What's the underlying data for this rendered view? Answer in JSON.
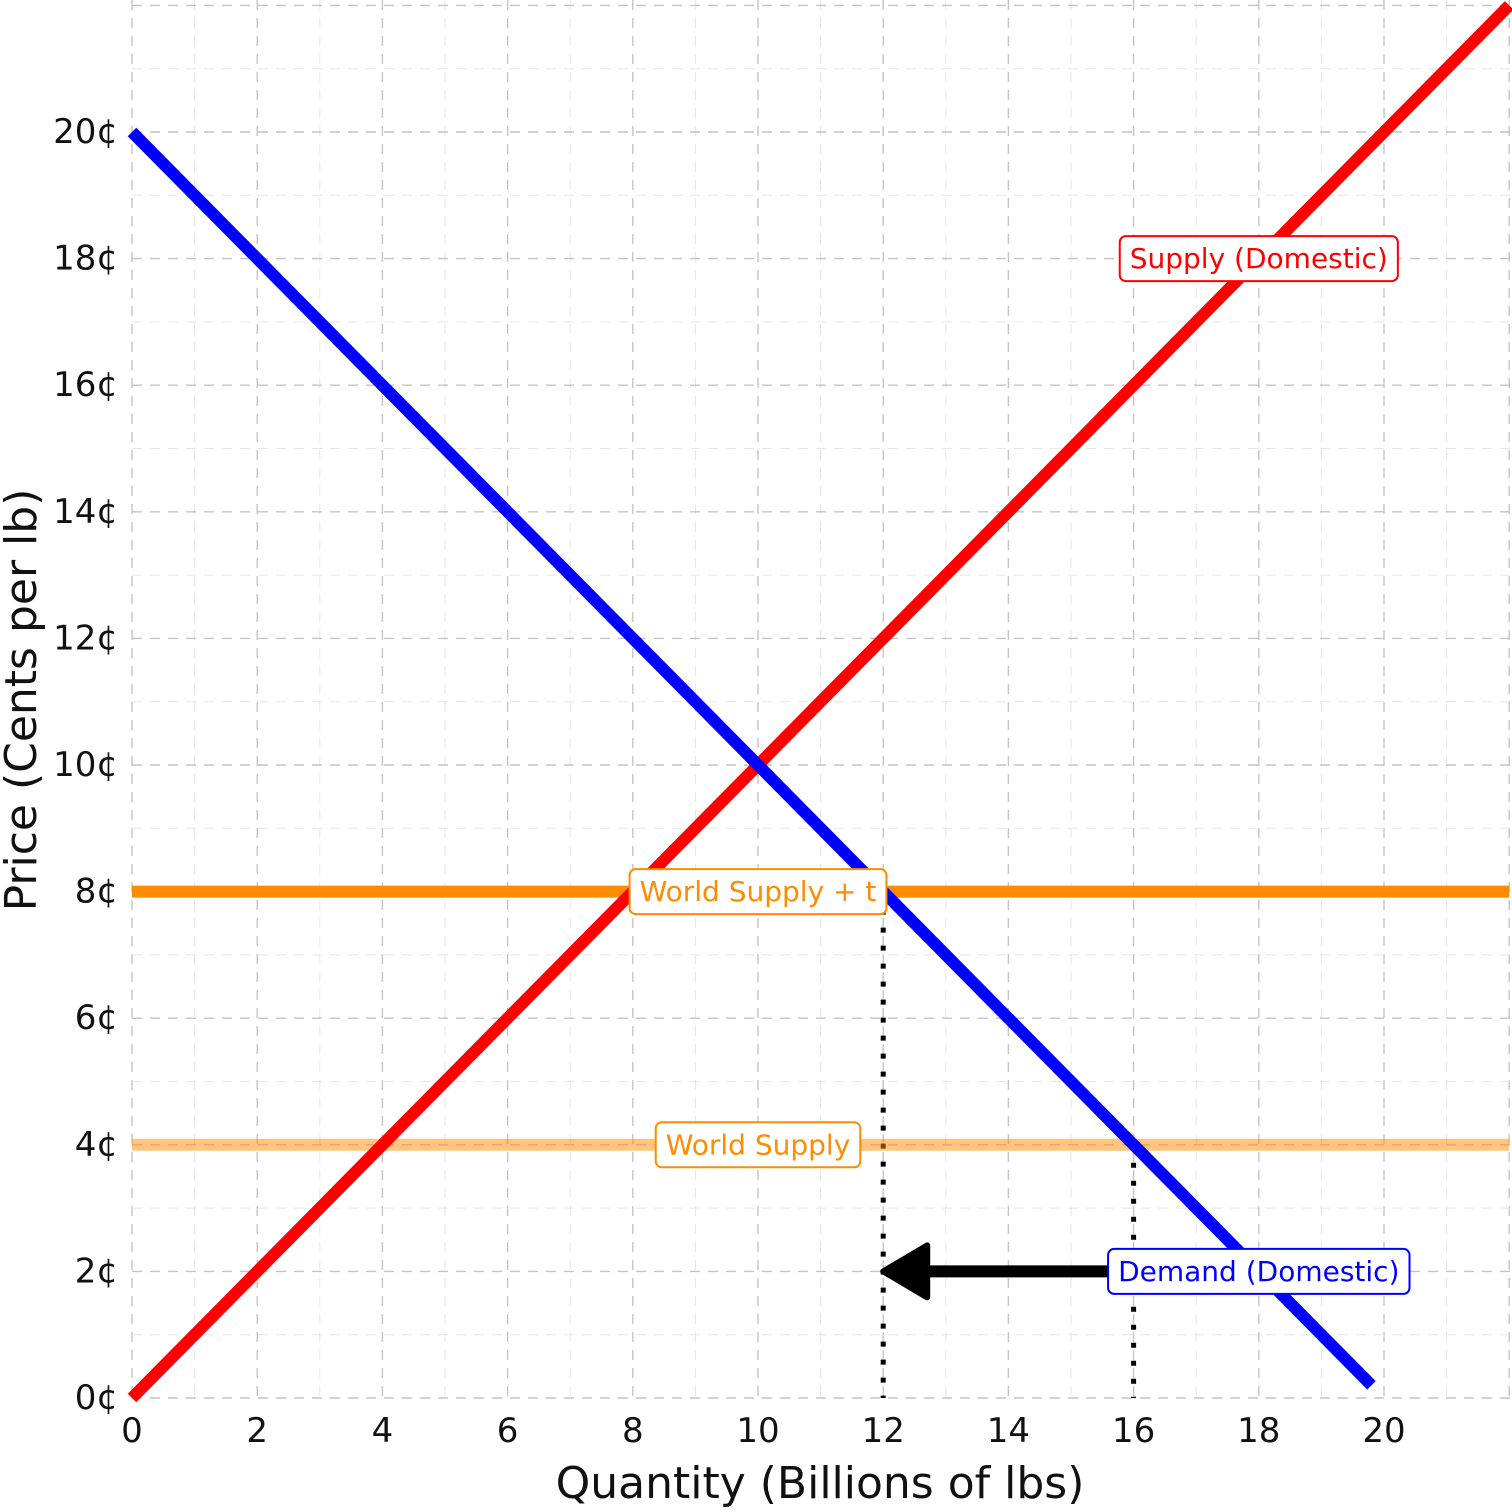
{
  "chart_data": {
    "type": "line",
    "title": "",
    "xlabel": "Quantity (Billions of lbs)",
    "ylabel": "Price (Cents per lb)",
    "xlim": [
      0,
      22
    ],
    "ylim": [
      0,
      22
    ],
    "x_ticks": [
      {
        "value": 0,
        "label": "0"
      },
      {
        "value": 2,
        "label": "2"
      },
      {
        "value": 4,
        "label": "4"
      },
      {
        "value": 6,
        "label": "6"
      },
      {
        "value": 8,
        "label": "8"
      },
      {
        "value": 10,
        "label": "10"
      },
      {
        "value": 12,
        "label": "12"
      },
      {
        "value": 14,
        "label": "14"
      },
      {
        "value": 16,
        "label": "16"
      },
      {
        "value": 18,
        "label": "18"
      },
      {
        "value": 20,
        "label": "20"
      }
    ],
    "y_ticks": [
      {
        "value": 0,
        "label": "0¢"
      },
      {
        "value": 2,
        "label": "2¢"
      },
      {
        "value": 4,
        "label": "4¢"
      },
      {
        "value": 6,
        "label": "6¢"
      },
      {
        "value": 8,
        "label": "8¢"
      },
      {
        "value": 10,
        "label": "10¢"
      },
      {
        "value": 12,
        "label": "12¢"
      },
      {
        "value": 14,
        "label": "14¢"
      },
      {
        "value": 16,
        "label": "16¢"
      },
      {
        "value": 18,
        "label": "18¢"
      },
      {
        "value": 20,
        "label": "20¢"
      }
    ],
    "grid": true,
    "series": [
      {
        "name": "Supply (Domestic)",
        "color": "#ff0000",
        "points": [
          [
            0,
            0
          ],
          [
            22,
            22
          ]
        ]
      },
      {
        "name": "Demand (Domestic)",
        "color": "#0000ff",
        "points": [
          [
            0,
            20
          ],
          [
            19.8,
            0.2
          ]
        ]
      },
      {
        "name": "World Supply + t",
        "color": "#ff8c00",
        "opacity": 1,
        "points": [
          [
            0,
            8
          ],
          [
            22,
            8
          ]
        ]
      },
      {
        "name": "World Supply",
        "color": "#ff8c00",
        "opacity": 0.5,
        "points": [
          [
            0,
            4
          ],
          [
            22,
            4
          ]
        ]
      }
    ],
    "labels": [
      {
        "text": "Supply (Domestic)",
        "x": 18,
        "y": 18,
        "color": "#ff0000"
      },
      {
        "text": "Demand (Domestic)",
        "x": 18,
        "y": 2,
        "color": "#0000ff"
      },
      {
        "text": "World Supply + t",
        "x": 10,
        "y": 8,
        "color": "#ff8c00"
      },
      {
        "text": "World Supply",
        "x": 10,
        "y": 4,
        "color": "#ff8c00"
      }
    ],
    "reference_lines": [
      {
        "x": 12,
        "y_from": 0,
        "y_to": 8
      },
      {
        "x": 16,
        "y_from": 0,
        "y_to": 4
      }
    ],
    "arrow": {
      "from": [
        16,
        2
      ],
      "to": [
        12,
        2
      ],
      "color": "#000000"
    }
  }
}
